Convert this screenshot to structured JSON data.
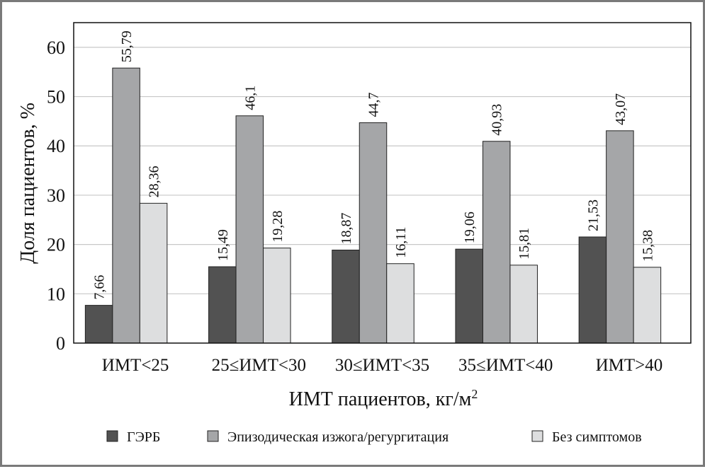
{
  "chart_data": {
    "type": "bar",
    "categories": [
      "ИМТ<25",
      "25≤ИМТ<30",
      "30≤ИМТ<35",
      "35≤ИМТ<40",
      "ИМТ>40"
    ],
    "series": [
      {
        "name": "ГЭРБ",
        "color": "#525252",
        "values": [
          7.66,
          15.49,
          18.87,
          19.06,
          21.53
        ],
        "labels": [
          "7,66",
          "15,49",
          "18,87",
          "19,06",
          "21,53"
        ]
      },
      {
        "name": "Эпизодическая изжога/регургитация",
        "color": "#a5a6a8",
        "values": [
          55.79,
          46.1,
          44.7,
          40.93,
          43.07
        ],
        "labels": [
          "55,79",
          "46,1",
          "44,7",
          "40,93",
          "43,07"
        ]
      },
      {
        "name": "Без симптомов",
        "color": "#dddedf",
        "values": [
          28.36,
          19.28,
          16.11,
          15.81,
          15.38
        ],
        "labels": [
          "28,36",
          "19,28",
          "16,11",
          "15,81",
          "15,38"
        ]
      }
    ],
    "xlabel_text": "ИМТ пациентов, кг/м",
    "xlabel_sup": "2",
    "ylabel": "Доля пациентов, %",
    "ylim": [
      0,
      65
    ],
    "yticks": [
      0,
      10,
      20,
      30,
      40,
      50,
      60
    ],
    "grid": true,
    "legend_position": "bottom"
  }
}
